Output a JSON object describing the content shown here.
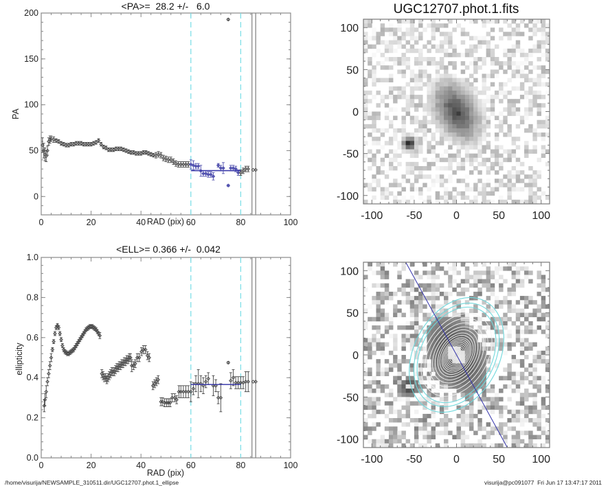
{
  "footer": {
    "path": "/home/visurija/NEWSAMPLE_310511.dir/UGC12707.phot.1_ellipse",
    "stamp": "visurija@pc091077  Fri Jun 17 13:47:17 2011"
  },
  "chart_data": [
    {
      "id": "pa-profile",
      "type": "scatter",
      "title": "<PA>=  28.2 +/-   6.0",
      "xlabel": "RAD (pix)",
      "ylabel": "PA",
      "xlim": [
        0,
        100
      ],
      "ylim": [
        -20,
        200
      ],
      "xticks": [
        0,
        20,
        40,
        60,
        80,
        100
      ],
      "yticks": [
        0,
        50,
        100,
        150,
        200
      ],
      "mean": 28.2,
      "mean_err": 6.0,
      "fit_range": [
        60,
        80
      ],
      "vlines_dashed": [
        60,
        80
      ],
      "vlines_solid": [
        84.5,
        86
      ],
      "colors": {
        "points": "#444444",
        "fit": "#3a3aaa",
        "fit_points": "#5555b0",
        "dashed": "#7fdfe8",
        "solid": "#888888"
      },
      "series": [
        {
          "name": "inner",
          "x": [
            0.5,
            1,
            1.5,
            2,
            2.5,
            3,
            3.5,
            4,
            5,
            6,
            7,
            8,
            9,
            10,
            11,
            12,
            13,
            14,
            15,
            16,
            17,
            18,
            19,
            20,
            21,
            22,
            23,
            24,
            25,
            26,
            27,
            28,
            29,
            30,
            31,
            32,
            33,
            34,
            35,
            36,
            37,
            38,
            39,
            40,
            41,
            42,
            43,
            44,
            45,
            46,
            47,
            48,
            49,
            50,
            51,
            52,
            53,
            54,
            55,
            56,
            57,
            58,
            59
          ],
          "y": [
            56,
            50,
            46,
            44,
            50,
            60,
            62,
            63,
            62,
            61,
            60,
            58,
            57,
            56,
            56,
            57,
            57,
            58,
            58,
            58,
            57,
            57,
            57,
            57,
            58,
            59,
            61,
            57,
            54,
            53,
            51,
            51,
            51,
            52,
            52,
            52,
            51,
            50,
            49,
            48,
            48,
            47,
            47,
            47,
            48,
            48,
            47,
            46,
            45,
            45,
            46,
            45,
            42,
            41,
            40,
            40,
            38,
            36,
            35,
            35,
            35,
            35,
            35
          ],
          "err": [
            8,
            8,
            7,
            6,
            5,
            4,
            4,
            3,
            3,
            2,
            2,
            2,
            2,
            2,
            2,
            2,
            2,
            2,
            2,
            2,
            2,
            2,
            2,
            2,
            2,
            2,
            2,
            2,
            2,
            2,
            2,
            2,
            2,
            2,
            2,
            2,
            2,
            2,
            2,
            2,
            2,
            2,
            2,
            2,
            2,
            2,
            2,
            2,
            2,
            3,
            3,
            3,
            3,
            3,
            3,
            3,
            3,
            3,
            3,
            3,
            3,
            3,
            3
          ]
        },
        {
          "name": "fit-region",
          "x": [
            60,
            61,
            62,
            63,
            64,
            65,
            66,
            67,
            68,
            69,
            71,
            72,
            73,
            75,
            76,
            77,
            78,
            79
          ],
          "y": [
            35,
            34,
            33,
            33,
            28,
            25,
            25,
            24,
            24,
            22,
            34,
            31,
            31,
            12,
            31,
            31,
            30,
            26
          ],
          "err": [
            5,
            5,
            3,
            3,
            6,
            3,
            3,
            3,
            3,
            4,
            2,
            3,
            6,
            1,
            3,
            3,
            3,
            3
          ]
        },
        {
          "name": "outer",
          "x": [
            80,
            81,
            82,
            83,
            85,
            86
          ],
          "y": [
            26,
            28,
            30,
            30,
            29,
            29
          ],
          "err": [
            3,
            3,
            3,
            3,
            0,
            0
          ]
        },
        {
          "name": "outlier",
          "x": [
            75
          ],
          "y": [
            193
          ],
          "err": [
            1
          ]
        }
      ]
    },
    {
      "id": "ell-profile",
      "type": "scatter",
      "title": "<ELL>= 0.366 +/-  0.042",
      "xlabel": "RAD (pix)",
      "ylabel": "ellipticity",
      "xlim": [
        0,
        100
      ],
      "ylim": [
        0,
        1.0
      ],
      "xticks": [
        0,
        20,
        40,
        60,
        80,
        100
      ],
      "yticks": [
        0.0,
        0.2,
        0.4,
        0.6,
        0.8,
        1.0
      ],
      "mean": 0.366,
      "mean_err": 0.042,
      "fit_range": [
        60,
        80
      ],
      "vlines_dashed": [
        60,
        80
      ],
      "vlines_solid": [
        84.5,
        86
      ],
      "colors": {
        "points": "#444444",
        "fit": "#3a3aaa",
        "dashed": "#7fdfe8",
        "solid": "#888888"
      },
      "series": [
        {
          "name": "inner",
          "x": [
            1.2,
            1.5,
            2,
            2.5,
            3,
            3.5,
            4,
            4.5,
            5,
            5.5,
            6,
            6.5,
            7,
            7.5,
            8,
            8.5,
            9,
            9.5,
            10,
            10.5,
            11,
            11.5,
            12,
            12.5,
            13,
            13.5,
            14,
            14.5,
            15,
            15.5,
            16,
            16.5,
            17,
            17.5,
            18,
            18.5,
            19,
            19.5,
            20,
            20.5,
            21,
            21.5,
            22,
            22.5,
            23,
            23.5
          ],
          "y": [
            0.26,
            0.29,
            0.33,
            0.38,
            0.42,
            0.46,
            0.5,
            0.54,
            0.58,
            0.62,
            0.65,
            0.66,
            0.65,
            0.62,
            0.59,
            0.56,
            0.54,
            0.53,
            0.525,
            0.52,
            0.52,
            0.525,
            0.53,
            0.535,
            0.54,
            0.55,
            0.56,
            0.57,
            0.58,
            0.59,
            0.6,
            0.61,
            0.62,
            0.63,
            0.64,
            0.645,
            0.65,
            0.655,
            0.655,
            0.655,
            0.65,
            0.645,
            0.64,
            0.63,
            0.62,
            0.61
          ],
          "err": [
            0.03,
            0.03,
            0.03,
            0.02,
            0.02,
            0.02,
            0.02,
            0.01,
            0.01,
            0.01,
            0.01,
            0.01,
            0.01,
            0.01,
            0.01,
            0.01,
            0.01,
            0.01,
            0.01,
            0.01,
            0.01,
            0.01,
            0.01,
            0.01,
            0.01,
            0.01,
            0.01,
            0.01,
            0.01,
            0.01,
            0.01,
            0.01,
            0.01,
            0.01,
            0.01,
            0.01,
            0.01,
            0.01,
            0.01,
            0.01,
            0.01,
            0.01,
            0.01,
            0.01,
            0.01,
            0.015
          ]
        },
        {
          "name": "mid",
          "x": [
            24.3,
            24.8,
            25.3,
            25.8,
            26.3,
            26.8,
            27.3,
            27.8,
            28.3,
            28.8,
            29.3,
            29.8,
            30.3,
            30.8,
            31.3,
            31.8,
            32.3,
            32.8,
            33.3,
            33.8,
            34.3,
            34.8,
            35.3,
            35.8,
            36.3,
            37,
            37.7,
            38.5,
            39.3,
            40.2,
            41,
            41.8,
            42.6,
            43.3,
            44.8,
            45.5,
            46.2,
            46.9,
            48,
            48.7,
            49.5,
            50.3,
            51,
            51.7,
            52.5,
            53.5,
            54.3,
            55.2,
            56,
            57,
            58,
            59
          ],
          "y": [
            0.42,
            0.41,
            0.4,
            0.4,
            0.39,
            0.4,
            0.41,
            0.42,
            0.43,
            0.43,
            0.43,
            0.44,
            0.45,
            0.45,
            0.46,
            0.46,
            0.47,
            0.47,
            0.48,
            0.48,
            0.49,
            0.49,
            0.5,
            0.5,
            0.46,
            0.46,
            0.47,
            0.5,
            0.5,
            0.53,
            0.54,
            0.54,
            0.51,
            0.5,
            0.36,
            0.37,
            0.38,
            0.39,
            0.28,
            0.28,
            0.275,
            0.275,
            0.275,
            0.275,
            0.3,
            0.3,
            0.29,
            0.33,
            0.33,
            0.33,
            0.33,
            0.33
          ],
          "err": [
            0.02,
            0.02,
            0.02,
            0.02,
            0.02,
            0.02,
            0.02,
            0.02,
            0.02,
            0.02,
            0.02,
            0.02,
            0.02,
            0.02,
            0.02,
            0.02,
            0.02,
            0.02,
            0.02,
            0.02,
            0.02,
            0.02,
            0.02,
            0.02,
            0.03,
            0.02,
            0.02,
            0.02,
            0.02,
            0.02,
            0.02,
            0.02,
            0.02,
            0.02,
            0.02,
            0.02,
            0.02,
            0.02,
            0.02,
            0.02,
            0.02,
            0.02,
            0.02,
            0.02,
            0.02,
            0.02,
            0.02,
            0.03,
            0.03,
            0.03,
            0.03,
            0.03
          ]
        },
        {
          "name": "fit-region",
          "x": [
            60,
            61,
            62,
            63,
            64,
            65,
            66,
            67,
            69,
            70,
            71,
            72,
            73,
            76,
            77,
            78,
            79
          ],
          "y": [
            0.33,
            0.345,
            0.37,
            0.37,
            0.37,
            0.36,
            0.38,
            0.395,
            0.36,
            0.36,
            0.3,
            0.3,
            0.37,
            0.385,
            0.4,
            0.375,
            0.375
          ],
          "err": [
            0.05,
            0.03,
            0.04,
            0.07,
            0.04,
            0.04,
            0.03,
            0.03,
            0.05,
            0.03,
            0.03,
            0.07,
            0.0,
            0.04,
            0.04,
            0.03,
            0.03
          ],
          "error_only": [
            false,
            false,
            false,
            false,
            false,
            false,
            false,
            false,
            false,
            false,
            false,
            false,
            true,
            false,
            false,
            false,
            false
          ]
        },
        {
          "name": "outer",
          "x": [
            80,
            81,
            82,
            83,
            85,
            86
          ],
          "y": [
            0.375,
            0.375,
            0.38,
            0.38,
            0.38,
            0.38
          ],
          "err": [
            0.03,
            0.03,
            0.05,
            0.05,
            0.0,
            0.0
          ]
        },
        {
          "name": "outlier",
          "x": [
            75
          ],
          "y": [
            0.475
          ],
          "err": [
            0.005
          ]
        }
      ]
    },
    {
      "id": "galaxy-image",
      "type": "heatmap",
      "title": "UGC12707.phot.1.fits",
      "xlim": [
        -110,
        110
      ],
      "ylim": [
        -110,
        110
      ],
      "xticks": [
        -100,
        -50,
        0,
        50,
        100
      ],
      "yticks": [
        -100,
        -50,
        0,
        50,
        100
      ],
      "colormap": "inverted-grayscale",
      "galaxy": {
        "center": [
          0,
          0
        ],
        "pa_deg": 28.2,
        "ellipticity": 0.366,
        "extent": 55
      },
      "companion": {
        "center": [
          -56,
          -38
        ]
      }
    },
    {
      "id": "ellipse-overlay",
      "type": "heatmap",
      "title": "",
      "xlim": [
        -110,
        110
      ],
      "ylim": [
        -110,
        110
      ],
      "xticks": [
        -100,
        -50,
        0,
        50,
        100
      ],
      "yticks": [
        -100,
        -50,
        0,
        50,
        100
      ],
      "colormap": "inverted-grayscale",
      "major_axis_line": {
        "pa_deg": 28.2,
        "color": "#3333aa"
      },
      "white_isophotes": [
        4,
        6,
        8,
        10,
        12,
        14,
        16,
        18,
        20,
        22,
        25,
        28,
        32,
        36,
        41,
        47,
        53
      ],
      "cyan_isophotes": [
        60,
        65,
        72
      ],
      "isophote_ellipticity": 0.4,
      "colors": {
        "white": "#f4f4f4",
        "cyan": "#6fd8dc"
      }
    }
  ]
}
